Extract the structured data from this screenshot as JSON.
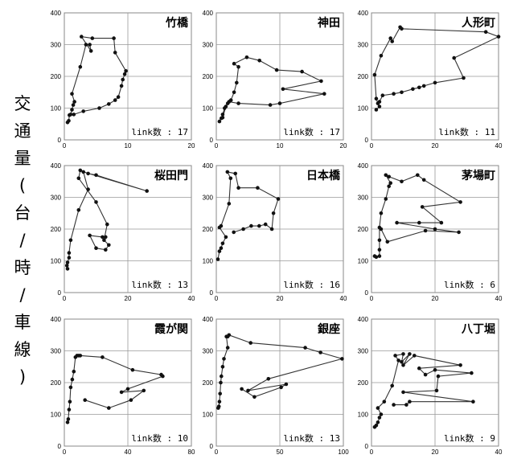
{
  "ylabel_chars": [
    "交",
    "通",
    "量",
    "(",
    "台",
    "/",
    "時",
    "/",
    "車",
    "線",
    ")"
  ],
  "chart_data": [
    {
      "type": "line",
      "title": "竹橋",
      "link": "link数 : 17",
      "xlim": [
        0,
        20
      ],
      "ylim": [
        0,
        400
      ],
      "xticks": [
        0,
        10,
        20
      ],
      "yticks": [
        0,
        100,
        200,
        300,
        400
      ],
      "points": [
        [
          0.5,
          55
        ],
        [
          0.7,
          60
        ],
        [
          0.8,
          78
        ],
        [
          1.0,
          80
        ],
        [
          1.2,
          95
        ],
        [
          1.4,
          110
        ],
        [
          1.6,
          120
        ],
        [
          1.2,
          145
        ],
        [
          2.5,
          230
        ],
        [
          3.4,
          300
        ],
        [
          4.0,
          300
        ],
        [
          4.2,
          280
        ],
        [
          2.7,
          325
        ],
        [
          4.4,
          320
        ],
        [
          7.8,
          320
        ],
        [
          8.0,
          275
        ],
        [
          9.7,
          217
        ],
        [
          9.5,
          207
        ],
        [
          9.2,
          190
        ],
        [
          9.0,
          170
        ],
        [
          8.5,
          135
        ],
        [
          8.0,
          125
        ],
        [
          7.0,
          113
        ],
        [
          5.5,
          100
        ],
        [
          3.0,
          90
        ],
        [
          1.5,
          80
        ]
      ]
    },
    {
      "type": "line",
      "title": "神田",
      "link": "link数 : 17",
      "xlim": [
        0,
        20
      ],
      "ylim": [
        0,
        400
      ],
      "xticks": [
        0,
        10,
        20
      ],
      "yticks": [
        0,
        100,
        200,
        300,
        400
      ],
      "points": [
        [
          0.5,
          58
        ],
        [
          0.8,
          68
        ],
        [
          1.0,
          80
        ],
        [
          1.3,
          100
        ],
        [
          1.8,
          115
        ],
        [
          2.3,
          125
        ],
        [
          2.8,
          150
        ],
        [
          3.2,
          180
        ],
        [
          3.5,
          230
        ],
        [
          2.8,
          240
        ],
        [
          4.8,
          260
        ],
        [
          6.8,
          250
        ],
        [
          9.5,
          220
        ],
        [
          13.5,
          215
        ],
        [
          16.5,
          185
        ],
        [
          10.5,
          160
        ],
        [
          17.0,
          145
        ],
        [
          10.0,
          115
        ],
        [
          8.5,
          110
        ],
        [
          3.5,
          115
        ],
        [
          2.0,
          120
        ],
        [
          1.5,
          105
        ],
        [
          1.0,
          70
        ]
      ]
    },
    {
      "type": "line",
      "title": "人形町",
      "link": "link数 : 11",
      "xlim": [
        0,
        40
      ],
      "ylim": [
        0,
        400
      ],
      "xticks": [
        0,
        20,
        40
      ],
      "yticks": [
        0,
        100,
        200,
        300,
        400
      ],
      "points": [
        [
          1.5,
          95
        ],
        [
          2.5,
          105
        ],
        [
          2.0,
          115
        ],
        [
          1.5,
          130
        ],
        [
          1.0,
          205
        ],
        [
          3.0,
          265
        ],
        [
          6.0,
          320
        ],
        [
          6.5,
          310
        ],
        [
          9.0,
          355
        ],
        [
          9.5,
          350
        ],
        [
          36.0,
          340
        ],
        [
          40.0,
          325
        ],
        [
          26.0,
          258
        ],
        [
          29.0,
          195
        ],
        [
          20.0,
          180
        ],
        [
          16.5,
          170
        ],
        [
          15.0,
          165
        ],
        [
          13.0,
          160
        ],
        [
          9.5,
          150
        ],
        [
          7.0,
          145
        ],
        [
          3.5,
          140
        ],
        [
          2.5,
          120
        ]
      ]
    },
    {
      "type": "line",
      "title": "桜田門",
      "link": "link数 : 13",
      "xlim": [
        0,
        40
      ],
      "ylim": [
        0,
        400
      ],
      "xticks": [
        0,
        20,
        40
      ],
      "yticks": [
        0,
        100,
        200,
        300,
        400
      ],
      "points": [
        [
          1.0,
          75
        ],
        [
          0.8,
          85
        ],
        [
          1.0,
          95
        ],
        [
          1.5,
          110
        ],
        [
          1.5,
          125
        ],
        [
          2.0,
          165
        ],
        [
          4.5,
          260
        ],
        [
          7.5,
          325
        ],
        [
          6.0,
          380
        ],
        [
          26.0,
          320
        ],
        [
          10.0,
          370
        ],
        [
          7.5,
          375
        ],
        [
          5.0,
          385
        ],
        [
          4.5,
          360
        ],
        [
          10.0,
          285
        ],
        [
          13.5,
          215
        ],
        [
          12.5,
          165
        ],
        [
          14.0,
          150
        ],
        [
          13.0,
          135
        ],
        [
          10.0,
          140
        ],
        [
          8.0,
          180
        ],
        [
          12.0,
          175
        ],
        [
          13.0,
          175
        ]
      ]
    },
    {
      "type": "line",
      "title": "日本橋",
      "link": "link数 : 16",
      "xlim": [
        0,
        40
      ],
      "ylim": [
        0,
        400
      ],
      "xticks": [
        0,
        20,
        40
      ],
      "yticks": [
        0,
        100,
        200,
        300,
        400
      ],
      "points": [
        [
          0.5,
          105
        ],
        [
          1.0,
          130
        ],
        [
          1.5,
          140
        ],
        [
          2.0,
          155
        ],
        [
          3.0,
          175
        ],
        [
          1.0,
          205
        ],
        [
          1.5,
          210
        ],
        [
          4.0,
          280
        ],
        [
          4.5,
          360
        ],
        [
          3.5,
          380
        ],
        [
          6.0,
          375
        ],
        [
          7.0,
          330
        ],
        [
          13.0,
          330
        ],
        [
          19.5,
          295
        ],
        [
          18.0,
          250
        ],
        [
          17.5,
          200
        ],
        [
          15.5,
          215
        ],
        [
          13.5,
          210
        ],
        [
          11.0,
          210
        ],
        [
          8.5,
          200
        ],
        [
          5.5,
          190
        ]
      ]
    },
    {
      "type": "line",
      "title": "茅場町",
      "link": "link数 : 6",
      "xlim": [
        0,
        40
      ],
      "ylim": [
        0,
        400
      ],
      "xticks": [
        0,
        20,
        40
      ],
      "yticks": [
        0,
        100,
        200,
        300,
        400
      ],
      "points": [
        [
          1.0,
          115
        ],
        [
          1.5,
          112
        ],
        [
          2.5,
          115
        ],
        [
          2.5,
          135
        ],
        [
          2.5,
          165
        ],
        [
          2.5,
          205
        ],
        [
          3.0,
          250
        ],
        [
          4.5,
          295
        ],
        [
          5.5,
          335
        ],
        [
          6.0,
          345
        ],
        [
          4.5,
          370
        ],
        [
          5.5,
          365
        ],
        [
          9.5,
          350
        ],
        [
          14.5,
          370
        ],
        [
          16.5,
          355
        ],
        [
          28.0,
          285
        ],
        [
          16.0,
          270
        ],
        [
          22.0,
          220
        ],
        [
          15.0,
          220
        ],
        [
          8.0,
          220
        ],
        [
          20.0,
          200
        ],
        [
          27.5,
          190
        ],
        [
          17.0,
          195
        ],
        [
          5.0,
          160
        ],
        [
          3.0,
          200
        ]
      ]
    },
    {
      "type": "line",
      "title": "霞が関",
      "link": "link数 : 10",
      "xlim": [
        0,
        80
      ],
      "ylim": [
        0,
        400
      ],
      "xticks": [
        0,
        40,
        80
      ],
      "yticks": [
        0,
        100,
        200,
        300,
        400
      ],
      "points": [
        [
          2.0,
          75
        ],
        [
          2.5,
          85
        ],
        [
          3.0,
          115
        ],
        [
          3.5,
          140
        ],
        [
          4.0,
          185
        ],
        [
          5.0,
          210
        ],
        [
          6.0,
          235
        ],
        [
          7.0,
          280
        ],
        [
          8.0,
          285
        ],
        [
          9.0,
          285
        ],
        [
          10.0,
          285
        ],
        [
          24.0,
          280
        ],
        [
          43.0,
          240
        ],
        [
          61.0,
          225
        ],
        [
          62.0,
          220
        ],
        [
          40.0,
          180
        ],
        [
          36.0,
          170
        ],
        [
          50.0,
          175
        ],
        [
          42.0,
          145
        ],
        [
          28.0,
          120
        ],
        [
          13.0,
          145
        ]
      ]
    },
    {
      "type": "line",
      "title": "銀座",
      "link": "link数 : 13",
      "xlim": [
        0,
        100
      ],
      "ylim": [
        0,
        400
      ],
      "xticks": [
        0,
        50,
        100
      ],
      "yticks": [
        0,
        100,
        200,
        300,
        400
      ],
      "points": [
        [
          1.5,
          120
        ],
        [
          2.0,
          125
        ],
        [
          2.5,
          140
        ],
        [
          3.0,
          165
        ],
        [
          3.5,
          200
        ],
        [
          4.0,
          220
        ],
        [
          5.0,
          250
        ],
        [
          6.0,
          275
        ],
        [
          9.0,
          310
        ],
        [
          8.0,
          345
        ],
        [
          9.0,
          345
        ],
        [
          10.0,
          350
        ],
        [
          27.0,
          325
        ],
        [
          70.0,
          310
        ],
        [
          82.0,
          295
        ],
        [
          99.0,
          275
        ],
        [
          41.0,
          212
        ],
        [
          25.0,
          175
        ],
        [
          55.0,
          195
        ],
        [
          51.0,
          185
        ],
        [
          30.0,
          155
        ],
        [
          20.0,
          180
        ]
      ]
    },
    {
      "type": "line",
      "title": "八丁堀",
      "link": "link数 : 9",
      "xlim": [
        0,
        40
      ],
      "ylim": [
        0,
        400
      ],
      "xticks": [
        0,
        20,
        40
      ],
      "yticks": [
        0,
        100,
        200,
        300,
        400
      ],
      "points": [
        [
          1.0,
          60
        ],
        [
          1.5,
          65
        ],
        [
          2.0,
          75
        ],
        [
          2.5,
          90
        ],
        [
          3.0,
          100
        ],
        [
          2.0,
          120
        ],
        [
          4.0,
          140
        ],
        [
          6.5,
          190
        ],
        [
          8.5,
          270
        ],
        [
          7.5,
          285
        ],
        [
          10.0,
          290
        ],
        [
          9.5,
          265
        ],
        [
          12.0,
          290
        ],
        [
          10.0,
          255
        ],
        [
          13.5,
          285
        ],
        [
          28.0,
          255
        ],
        [
          15.0,
          245
        ],
        [
          17.0,
          225
        ],
        [
          20.0,
          240
        ],
        [
          31.5,
          230
        ],
        [
          21.0,
          220
        ],
        [
          20.5,
          175
        ],
        [
          10.0,
          170
        ],
        [
          32.0,
          140
        ],
        [
          12.0,
          140
        ],
        [
          11.0,
          130
        ],
        [
          7.0,
          130
        ]
      ]
    }
  ]
}
